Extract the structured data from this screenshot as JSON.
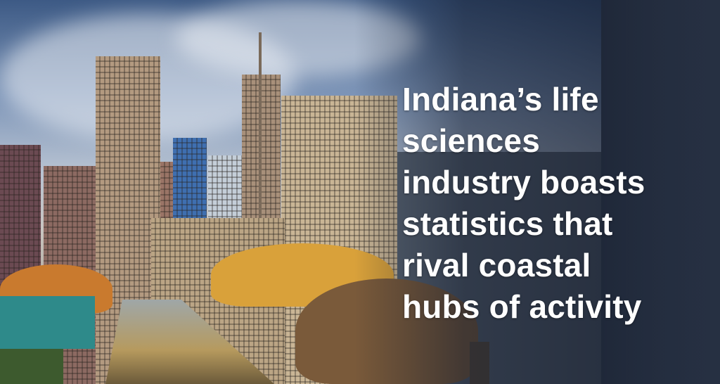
{
  "headline": {
    "lines": [
      "Indiana’s life",
      "sciences",
      "industry boasts",
      "statistics that",
      "rival coastal",
      "hubs of activity"
    ]
  },
  "colors": {
    "text": "#ffffff",
    "sky": "#3d5a85",
    "foliage": "#d9a13a"
  }
}
